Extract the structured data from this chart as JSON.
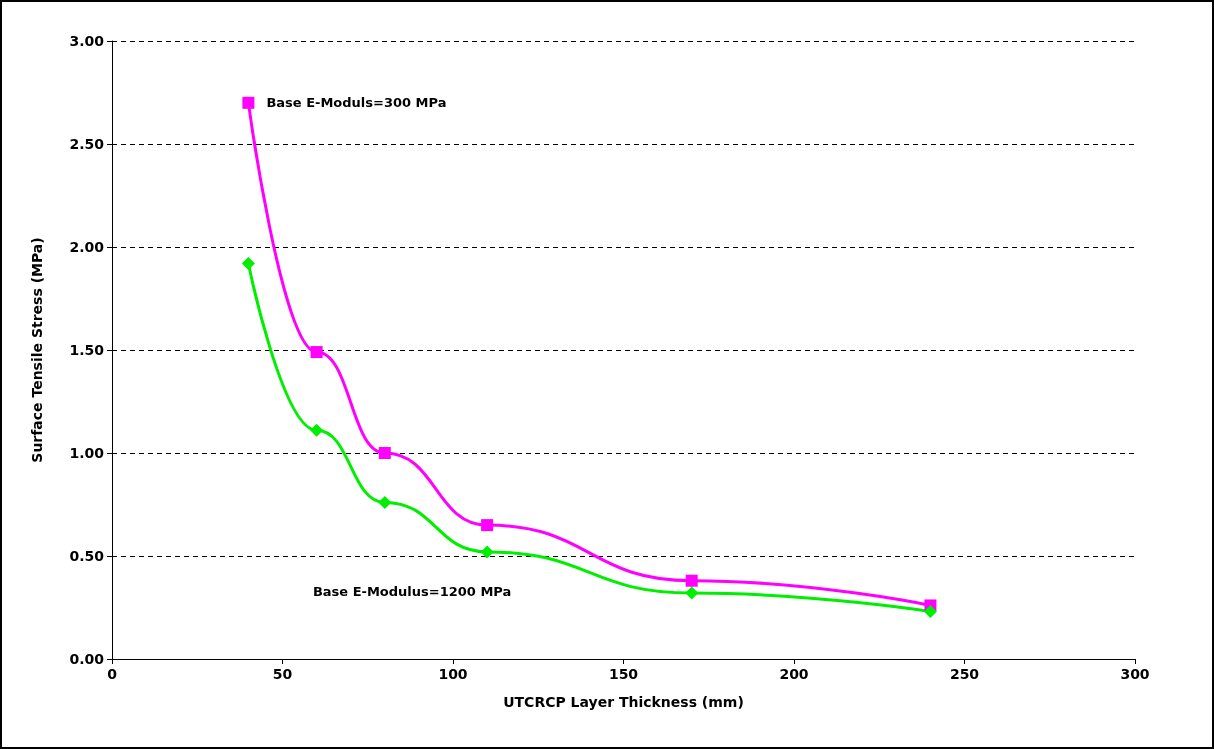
{
  "chart_data": {
    "type": "line",
    "xlabel": "UTCRCP Layer Thickness (mm)",
    "ylabel": "Surface Tensile Stress (MPa)",
    "xlim": [
      0,
      300
    ],
    "xticks": [
      0,
      50,
      100,
      150,
      200,
      250,
      300
    ],
    "ylim": [
      0,
      3
    ],
    "yticks": [
      {
        "value": 0,
        "label": "0.00"
      },
      {
        "value": 0.5,
        "label": "0.50"
      },
      {
        "value": 1,
        "label": "1.00"
      },
      {
        "value": 1.5,
        "label": "1.50"
      },
      {
        "value": 2,
        "label": "2.00"
      },
      {
        "value": 2.5,
        "label": "2.50"
      },
      {
        "value": 3,
        "label": "3.00"
      }
    ],
    "grid": "y",
    "legend": false,
    "line_style": "solid",
    "series": [
      {
        "name": "Base E-Moduls=300 MPa",
        "color": "#ff00ff",
        "marker": "square",
        "x": [
          40,
          60,
          80,
          110,
          170,
          240
        ],
        "values": [
          2.7,
          1.49,
          1.0,
          0.65,
          0.38,
          0.26
        ]
      },
      {
        "name": "Base E-Modulus=1200 MPa",
        "color": "#00ee00",
        "marker": "diamond",
        "x": [
          40,
          60,
          80,
          110,
          170,
          240
        ],
        "values": [
          1.92,
          1.11,
          0.76,
          0.52,
          0.32,
          0.23
        ]
      }
    ]
  }
}
